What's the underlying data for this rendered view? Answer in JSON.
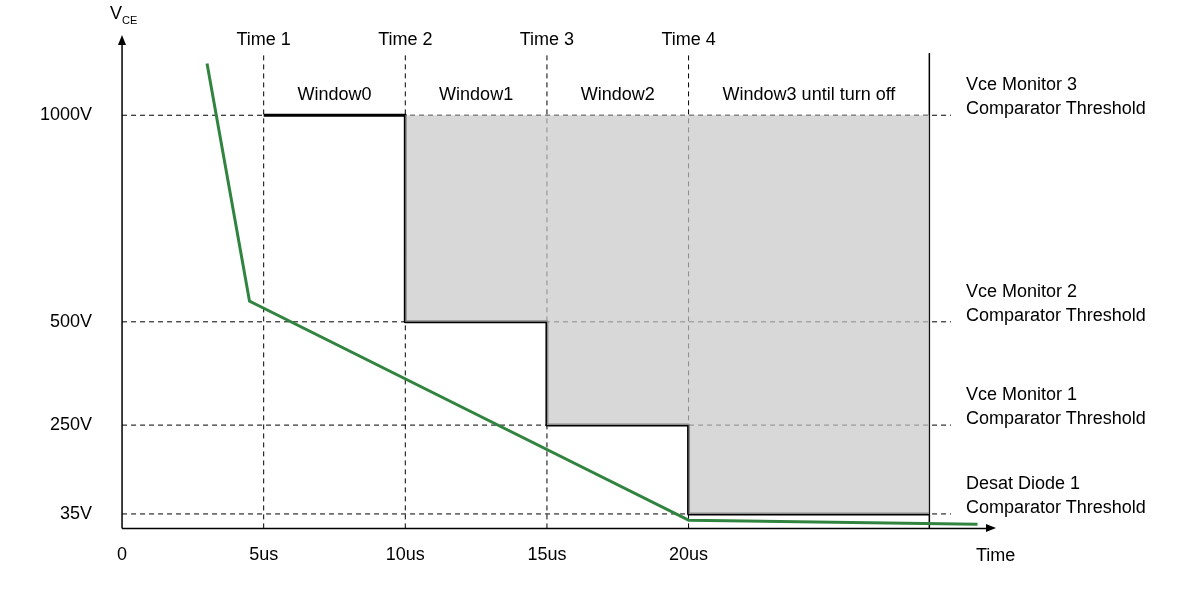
{
  "chart_data": {
    "type": "line",
    "xlabel": "Time",
    "ylabel": "V$_{CE}$",
    "xlim": [
      0,
      30.5
    ],
    "ylim": [
      0,
      1170
    ],
    "xticks": [
      0,
      {
        "value": 5,
        "label": "5us"
      },
      {
        "value": 10,
        "label": "10us"
      },
      {
        "value": 15,
        "label": "15us"
      },
      {
        "value": 20,
        "label": "20us"
      }
    ],
    "yticks": [
      {
        "value": 35,
        "label": "35V"
      },
      {
        "value": 250,
        "label": "250V"
      },
      {
        "value": 500,
        "label": "500V"
      },
      {
        "value": 1000,
        "label": "1000V"
      }
    ],
    "series": [
      {
        "type": "step",
        "color": "#000000",
        "x": [
          5,
          10,
          15,
          20,
          28.5
        ],
        "values": [
          1000,
          500,
          250,
          35,
          35
        ],
        "lower": [
          1000,
          500,
          250,
          35,
          35
        ],
        "upper": [
          1000,
          1000,
          1000,
          1000,
          1000
        ]
      },
      {
        "type": "line",
        "color": "#31843f",
        "x": [
          3,
          4.5,
          20,
          30.2
        ],
        "values": [
          1125,
          550,
          20,
          10
        ]
      }
    ],
    "ref_lines": [
      {
        "axis": "y",
        "value": 1000,
        "label": "Vce Monitor 3\nComparator Threshold",
        "line_style": "dashed"
      },
      {
        "axis": "y",
        "value": 500,
        "label": "Vce Monitor 2\nComparator Threshold",
        "line_style": "dashed"
      },
      {
        "axis": "y",
        "value": 250,
        "label": "Vce Monitor 1\nComparator Threshold",
        "line_style": "dashed"
      },
      {
        "axis": "y",
        "value": 35,
        "label": "Desat Diode 1\nComparator Threshold",
        "line_style": "dashed"
      },
      {
        "axis": "x",
        "value": 5,
        "label": "Time 1",
        "line_style": "dashed"
      },
      {
        "axis": "x",
        "value": 10,
        "label": "Time 2",
        "line_style": "dashed"
      },
      {
        "axis": "x",
        "value": 15,
        "label": "Time 3",
        "line_style": "dashed"
      },
      {
        "axis": "x",
        "value": 20,
        "label": "Time 4",
        "line_style": "dashed"
      },
      {
        "axis": "x",
        "value": 28.5,
        "label": null,
        "line_style": "solid"
      }
    ],
    "annotations": [
      "Window0",
      "Window1",
      "Window2",
      "Window3 until turn off"
    ],
    "grid": false,
    "legend": false,
    "marker": "none"
  }
}
